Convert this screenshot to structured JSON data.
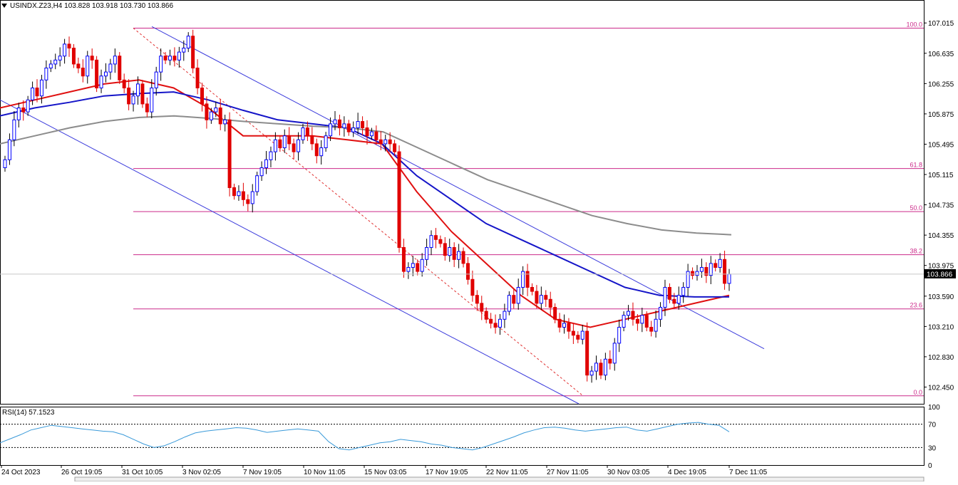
{
  "header": {
    "symbol_line": "USINDX.Z23,H4  103.828 103.918 103.730 103.866"
  },
  "colors": {
    "bull_candle": "#0000ff",
    "bear_candle": "#e00000",
    "ma_fast": "#e01010",
    "ma_mid": "#1515c8",
    "ma_slow": "#8c8c8c",
    "channel": "#3c3cdc",
    "fib": "#cc2a8a",
    "fib_diag": "#e03030",
    "rsi": "#3a9ad9"
  },
  "chart_data": [
    {
      "type": "candlestick",
      "symbol": "USINDX.Z23",
      "timeframe": "H4",
      "ohlc_last": {
        "open": 103.828,
        "high": 103.918,
        "low": 103.73,
        "close": 103.866
      },
      "current_price_label": "103.866",
      "y_ticks": [
        "107.015",
        "106.635",
        "106.255",
        "105.875",
        "105.495",
        "105.115",
        "104.735",
        "104.355",
        "103.975",
        "103.590",
        "103.210",
        "102.830",
        "102.450"
      ],
      "ylim": [
        102.24,
        107.16
      ],
      "x_labels": [
        "24 Oct 2023",
        "26 Oct 19:05",
        "31 Oct 10:05",
        "3 Nov 02:05",
        "7 Nov 19:05",
        "10 Nov 11:05",
        "15 Nov 03:05",
        "17 Nov 19:05",
        "22 Nov 11:05",
        "27 Nov 11:05",
        "30 Nov 03:05",
        "4 Dec 19:05",
        "7 Dec 11:05"
      ],
      "closes": [
        105.3,
        105.55,
        105.8,
        105.95,
        105.9,
        106.05,
        106.2,
        106.1,
        106.3,
        106.45,
        106.5,
        106.55,
        106.6,
        106.75,
        106.7,
        106.5,
        106.45,
        106.35,
        106.6,
        106.55,
        106.2,
        106.35,
        106.4,
        106.5,
        106.6,
        106.3,
        106.2,
        106.0,
        106.1,
        106.25,
        106.0,
        105.9,
        106.2,
        106.4,
        106.6,
        106.55,
        106.6,
        106.55,
        106.65,
        106.7,
        106.85,
        106.45,
        106.2,
        106.0,
        105.8,
        105.9,
        105.95,
        105.75,
        105.8,
        104.95,
        104.85,
        104.9,
        104.8,
        104.75,
        104.9,
        105.1,
        105.2,
        105.3,
        105.4,
        105.55,
        105.45,
        105.6,
        105.5,
        105.4,
        105.55,
        105.7,
        105.6,
        105.5,
        105.35,
        105.45,
        105.6,
        105.75,
        105.8,
        105.7,
        105.75,
        105.65,
        105.7,
        105.78,
        105.7,
        105.6,
        105.65,
        105.55,
        105.5,
        105.55,
        105.5,
        105.4,
        104.2,
        103.9,
        103.95,
        104.0,
        103.9,
        104.05,
        104.2,
        104.35,
        104.3,
        104.25,
        104.1,
        104.2,
        104.05,
        104.15,
        104.0,
        103.8,
        103.6,
        103.5,
        103.4,
        103.3,
        103.25,
        103.2,
        103.3,
        103.4,
        103.6,
        103.5,
        103.7,
        103.9,
        103.7,
        103.65,
        103.5,
        103.6,
        103.55,
        103.45,
        103.3,
        103.2,
        103.25,
        103.15,
        103.1,
        103.05,
        103.15,
        102.6,
        102.65,
        102.75,
        102.6,
        102.8,
        102.75,
        103.0,
        103.2,
        103.35,
        103.4,
        103.3,
        103.25,
        103.35,
        103.2,
        103.15,
        103.3,
        103.45,
        103.7,
        103.55,
        103.5,
        103.6,
        103.7,
        103.9,
        103.85,
        103.9,
        103.95,
        103.85,
        104.0,
        103.95,
        104.05,
        103.75,
        103.866
      ],
      "moving_averages": [
        {
          "color_key": "ma_fast",
          "values": [
            105.95,
            106.05,
            106.15,
            106.25,
            106.3,
            106.2,
            105.95,
            105.6,
            105.6,
            105.6,
            105.55,
            105.5,
            104.9,
            104.4,
            104.0,
            103.6,
            103.3,
            103.2,
            103.3,
            103.4,
            103.5,
            103.6
          ]
        },
        {
          "color_key": "ma_mid",
          "values": [
            105.85,
            105.95,
            106.02,
            106.1,
            106.13,
            106.15,
            106.05,
            105.92,
            105.8,
            105.75,
            105.7,
            105.5,
            105.1,
            104.8,
            104.5,
            104.3,
            104.1,
            103.9,
            103.7,
            103.6,
            103.58,
            103.58
          ]
        },
        {
          "color_key": "ma_slow",
          "values": [
            105.5,
            105.6,
            105.7,
            105.78,
            105.83,
            105.85,
            105.82,
            105.78,
            105.75,
            105.72,
            105.7,
            105.65,
            105.45,
            105.25,
            105.05,
            104.9,
            104.75,
            104.6,
            104.5,
            104.42,
            104.38,
            104.36
          ]
        }
      ],
      "channel": {
        "upper": [
          [
            0,
            106.95
          ],
          [
            162,
            103.0
          ]
        ],
        "lower": [
          [
            0,
            105.85
          ],
          [
            95,
            102.25
          ]
        ]
      },
      "fibonacci": [
        {
          "label": "100.0",
          "price": 106.95
        },
        {
          "label": "61.8",
          "price": 105.19
        },
        {
          "label": "50.0",
          "price": 104.65
        },
        {
          "label": "38.2",
          "price": 104.11
        },
        {
          "label": "23.6",
          "price": 103.43
        },
        {
          "label": "0.0",
          "price": 102.34
        }
      ]
    },
    {
      "type": "line",
      "indicator_label": "RSI(14) 57.1523",
      "y_ticks": [
        "100",
        "70",
        "30",
        "0"
      ],
      "ylim": [
        0,
        100
      ],
      "levels": [
        70,
        30
      ],
      "values": [
        38,
        45,
        52,
        60,
        64,
        68,
        66,
        64,
        62,
        60,
        58,
        57,
        52,
        44,
        36,
        30,
        33,
        40,
        48,
        55,
        58,
        60,
        62,
        64,
        63,
        60,
        56,
        58,
        60,
        62,
        60,
        58,
        40,
        28,
        26,
        30,
        34,
        38,
        40,
        44,
        42,
        40,
        36,
        34,
        30,
        28,
        26,
        30,
        36,
        42,
        48,
        55,
        60,
        64,
        65,
        63,
        60,
        58,
        60,
        62,
        64,
        65,
        60,
        58,
        62,
        66,
        70,
        72,
        73,
        70,
        68,
        57
      ]
    }
  ]
}
